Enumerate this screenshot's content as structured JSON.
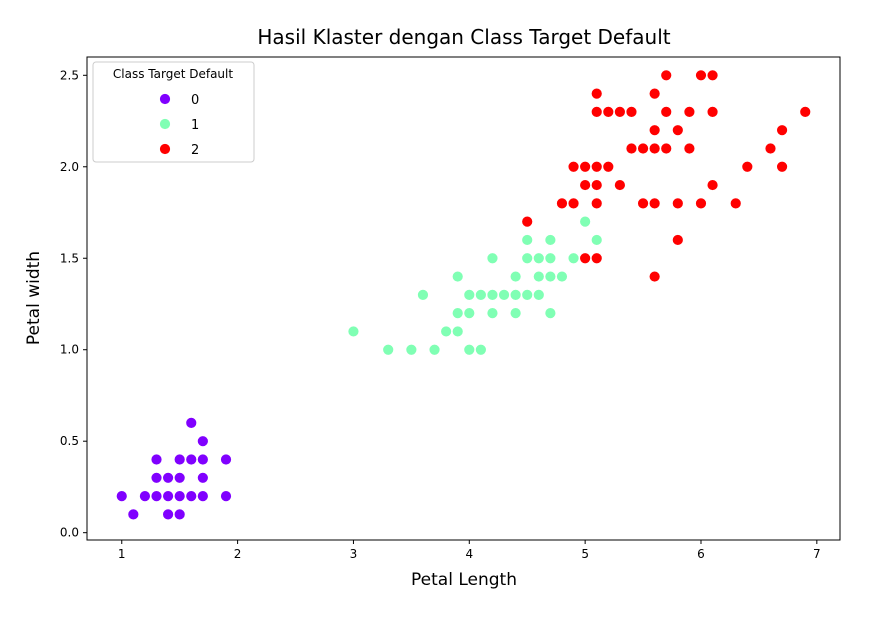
{
  "chart_data": {
    "type": "scatter",
    "title": "Hasil Klaster dengan Class Target Default",
    "xlabel": "Petal Length",
    "ylabel": "Petal width",
    "xlim": [
      0.7,
      7.2
    ],
    "ylim": [
      -0.04,
      2.6
    ],
    "xticks": [
      1,
      2,
      3,
      4,
      5,
      6,
      7
    ],
    "yticks": [
      0.0,
      0.5,
      1.0,
      1.5,
      2.0,
      2.5
    ],
    "xtick_labels": [
      "1",
      "2",
      "3",
      "4",
      "5",
      "6",
      "7"
    ],
    "ytick_labels": [
      "0.0",
      "0.5",
      "1.0",
      "1.5",
      "2.0",
      "2.5"
    ],
    "grid": false,
    "legend": {
      "title": "Class Target Default",
      "placement": "top-left"
    },
    "series": [
      {
        "name": "0",
        "color": "#8000ff",
        "points": [
          [
            1.0,
            0.2
          ],
          [
            1.1,
            0.1
          ],
          [
            1.2,
            0.2
          ],
          [
            1.3,
            0.2
          ],
          [
            1.3,
            0.3
          ],
          [
            1.3,
            0.4
          ],
          [
            1.4,
            0.1
          ],
          [
            1.4,
            0.2
          ],
          [
            1.4,
            0.3
          ],
          [
            1.5,
            0.1
          ],
          [
            1.5,
            0.2
          ],
          [
            1.5,
            0.3
          ],
          [
            1.5,
            0.4
          ],
          [
            1.6,
            0.2
          ],
          [
            1.6,
            0.4
          ],
          [
            1.6,
            0.6
          ],
          [
            1.7,
            0.2
          ],
          [
            1.7,
            0.3
          ],
          [
            1.7,
            0.4
          ],
          [
            1.7,
            0.5
          ],
          [
            1.9,
            0.2
          ],
          [
            1.9,
            0.4
          ]
        ]
      },
      {
        "name": "1",
        "color": "#80ffb4",
        "points": [
          [
            3.0,
            1.1
          ],
          [
            3.3,
            1.0
          ],
          [
            3.5,
            1.0
          ],
          [
            3.6,
            1.3
          ],
          [
            3.7,
            1.0
          ],
          [
            3.8,
            1.1
          ],
          [
            3.9,
            1.1
          ],
          [
            3.9,
            1.2
          ],
          [
            3.9,
            1.4
          ],
          [
            4.0,
            1.0
          ],
          [
            4.0,
            1.2
          ],
          [
            4.0,
            1.3
          ],
          [
            4.1,
            1.0
          ],
          [
            4.1,
            1.3
          ],
          [
            4.2,
            1.2
          ],
          [
            4.2,
            1.3
          ],
          [
            4.2,
            1.5
          ],
          [
            4.3,
            1.3
          ],
          [
            4.4,
            1.2
          ],
          [
            4.4,
            1.3
          ],
          [
            4.4,
            1.4
          ],
          [
            4.5,
            1.3
          ],
          [
            4.5,
            1.5
          ],
          [
            4.5,
            1.6
          ],
          [
            4.6,
            1.3
          ],
          [
            4.6,
            1.4
          ],
          [
            4.6,
            1.5
          ],
          [
            4.7,
            1.2
          ],
          [
            4.7,
            1.4
          ],
          [
            4.7,
            1.5
          ],
          [
            4.7,
            1.6
          ],
          [
            4.8,
            1.4
          ],
          [
            4.9,
            1.5
          ],
          [
            5.0,
            1.7
          ],
          [
            5.1,
            1.6
          ]
        ]
      },
      {
        "name": "2",
        "color": "#ff0000",
        "points": [
          [
            4.5,
            1.7
          ],
          [
            4.8,
            1.8
          ],
          [
            4.9,
            1.8
          ],
          [
            4.9,
            2.0
          ],
          [
            5.0,
            1.5
          ],
          [
            5.0,
            1.9
          ],
          [
            5.0,
            2.0
          ],
          [
            5.1,
            1.5
          ],
          [
            5.1,
            1.8
          ],
          [
            5.1,
            1.9
          ],
          [
            5.1,
            2.0
          ],
          [
            5.1,
            2.3
          ],
          [
            5.1,
            2.4
          ],
          [
            5.2,
            2.0
          ],
          [
            5.2,
            2.3
          ],
          [
            5.3,
            1.9
          ],
          [
            5.3,
            2.3
          ],
          [
            5.4,
            2.1
          ],
          [
            5.4,
            2.3
          ],
          [
            5.5,
            1.8
          ],
          [
            5.5,
            2.1
          ],
          [
            5.6,
            1.4
          ],
          [
            5.6,
            1.8
          ],
          [
            5.6,
            2.1
          ],
          [
            5.6,
            2.2
          ],
          [
            5.6,
            2.4
          ],
          [
            5.7,
            2.1
          ],
          [
            5.7,
            2.3
          ],
          [
            5.7,
            2.5
          ],
          [
            5.8,
            1.6
          ],
          [
            5.8,
            1.8
          ],
          [
            5.8,
            2.2
          ],
          [
            5.9,
            2.1
          ],
          [
            5.9,
            2.3
          ],
          [
            6.0,
            1.8
          ],
          [
            6.0,
            2.5
          ],
          [
            6.1,
            1.9
          ],
          [
            6.1,
            2.3
          ],
          [
            6.1,
            2.5
          ],
          [
            6.3,
            1.8
          ],
          [
            6.4,
            2.0
          ],
          [
            6.6,
            2.1
          ],
          [
            6.7,
            2.0
          ],
          [
            6.7,
            2.2
          ],
          [
            6.9,
            2.3
          ]
        ]
      }
    ]
  }
}
